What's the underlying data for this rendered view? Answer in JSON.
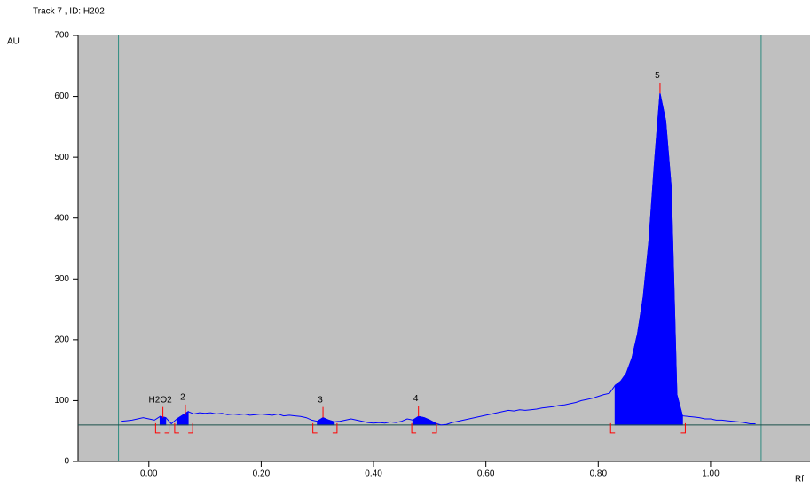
{
  "header": "Track 7 , ID: H202",
  "chart_data": {
    "type": "line",
    "y_label": "AU",
    "x_label": "Rf",
    "xlim": [
      -0.126,
      1.177
    ],
    "ylim": [
      0,
      700
    ],
    "xticks": [
      {
        "value": 0,
        "label": "0.00"
      },
      {
        "value": 0.2,
        "label": "0.20"
      },
      {
        "value": 0.4,
        "label": "0.40"
      },
      {
        "value": 0.6,
        "label": "0.60"
      },
      {
        "value": 0.8,
        "label": "0.80"
      },
      {
        "value": 1,
        "label": "1.00"
      }
    ],
    "yticks": [
      0,
      100,
      200,
      300,
      400,
      500,
      600,
      700
    ],
    "baseline": 60,
    "front_limits": [
      -0.054,
      1.09
    ],
    "color": "#0000ff",
    "bracket_color": "#ff0000",
    "x": [
      -0.05,
      -0.04,
      -0.03,
      -0.02,
      -0.01,
      0,
      0.01,
      0.02,
      0.03,
      0.04,
      0.05,
      0.06,
      0.07,
      0.08,
      0.09,
      0.1,
      0.11,
      0.12,
      0.13,
      0.14,
      0.15,
      0.16,
      0.17,
      0.18,
      0.19,
      0.2,
      0.21,
      0.22,
      0.23,
      0.24,
      0.25,
      0.26,
      0.27,
      0.28,
      0.29,
      0.3,
      0.31,
      0.32,
      0.33,
      0.34,
      0.35,
      0.36,
      0.37,
      0.38,
      0.39,
      0.4,
      0.41,
      0.42,
      0.43,
      0.44,
      0.45,
      0.46,
      0.47,
      0.48,
      0.49,
      0.5,
      0.51,
      0.52,
      0.53,
      0.54,
      0.55,
      0.56,
      0.57,
      0.58,
      0.59,
      0.6,
      0.61,
      0.62,
      0.63,
      0.64,
      0.65,
      0.66,
      0.67,
      0.68,
      0.69,
      0.7,
      0.71,
      0.72,
      0.73,
      0.74,
      0.75,
      0.76,
      0.77,
      0.78,
      0.79,
      0.8,
      0.81,
      0.82,
      0.83,
      0.84,
      0.85,
      0.86,
      0.87,
      0.88,
      0.89,
      0.9,
      0.91,
      0.92,
      0.93,
      0.94,
      0.95,
      0.96,
      0.97,
      0.98,
      0.99,
      1,
      1.01,
      1.02,
      1.03,
      1.04,
      1.05,
      1.06,
      1.07,
      1.08
    ],
    "values": [
      66,
      67,
      68,
      70,
      72,
      70,
      68,
      74,
      72,
      62,
      70,
      76,
      82,
      78,
      80,
      79,
      80,
      78,
      79,
      77,
      78,
      77,
      78,
      76,
      77,
      78,
      77,
      76,
      78,
      75,
      76,
      75,
      74,
      72,
      68,
      66,
      72,
      68,
      65,
      66,
      68,
      70,
      68,
      66,
      64,
      63,
      64,
      63,
      65,
      64,
      66,
      70,
      68,
      74,
      72,
      68,
      63,
      60,
      61,
      64,
      66,
      68,
      70,
      72,
      74,
      76,
      78,
      80,
      82,
      84,
      83,
      85,
      84,
      85,
      86,
      88,
      89,
      90,
      92,
      93,
      95,
      97,
      100,
      102,
      104,
      107,
      110,
      112,
      125,
      132,
      145,
      170,
      210,
      270,
      360,
      490,
      605,
      560,
      450,
      110,
      75,
      74,
      73,
      72,
      70,
      70,
      68,
      68,
      67,
      66,
      65,
      64,
      62,
      62
    ],
    "peaks": [
      {
        "name": "H2O2",
        "start": 0.012,
        "max": 0.025,
        "end": 0.036
      },
      {
        "name": "2",
        "start": 0.046,
        "max": 0.065,
        "end": 0.078
      },
      {
        "name": "3",
        "start": 0.292,
        "max": 0.31,
        "end": 0.335
      },
      {
        "name": "4",
        "start": 0.468,
        "max": 0.48,
        "end": 0.512
      },
      {
        "name": "5",
        "start": 0.822,
        "max": 0.91,
        "end": 0.955
      }
    ]
  }
}
